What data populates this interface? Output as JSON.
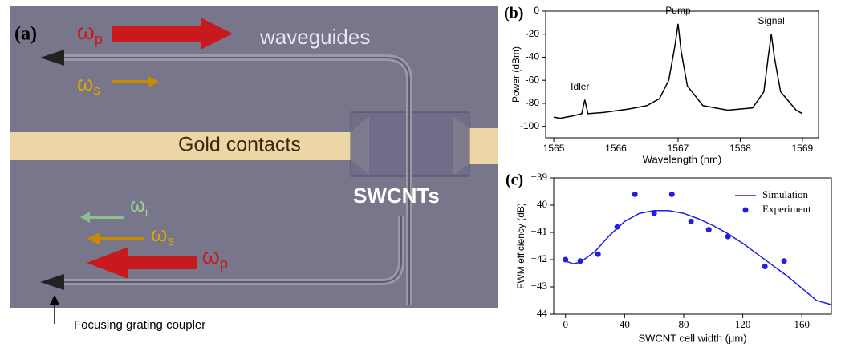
{
  "panel_a": {
    "label": "(a)",
    "waveguides": "waveguides",
    "gold": "Gold contacts",
    "swcnt": "SWCNTs",
    "caption": "Focusing grating coupler",
    "omegas": [
      {
        "symbol": "ω",
        "sub": "p"
      },
      {
        "symbol": "ω",
        "sub": "s"
      },
      {
        "symbol": "ω",
        "sub": "i"
      },
      {
        "symbol": "ω",
        "sub": "s"
      },
      {
        "symbol": "ω",
        "sub": "p"
      }
    ]
  },
  "chart_data": [
    {
      "type": "line",
      "label": "(b)",
      "x_label": "Wavelength (nm)",
      "y_label": "Power (dBm)",
      "xlim": [
        1564.87,
        1569.26
      ],
      "ylim": [
        -110,
        0
      ],
      "xticks": [
        1565,
        1566,
        1567,
        1568,
        1569
      ],
      "yticks": [
        -100,
        -80,
        -60,
        -40,
        -20,
        0
      ],
      "annotations": [
        "Idler",
        "Pump",
        "Signal"
      ],
      "series": [
        {
          "type": "line",
          "color": "#000000",
          "x": [
            1565,
            1565.1,
            1565.3,
            1565.45,
            1565.5,
            1565.55,
            1565.8,
            1566.2,
            1566.5,
            1566.7,
            1566.85,
            1566.95,
            1567,
            1567.05,
            1567.15,
            1567.4,
            1567.8,
            1568.2,
            1568.38,
            1568.45,
            1568.5,
            1568.55,
            1568.65,
            1568.9,
            1569
          ],
          "values": [
            -92,
            -93,
            -91,
            -89,
            -77,
            -89,
            -88,
            -85,
            -82,
            -76,
            -60,
            -30,
            -11,
            -35,
            -65,
            -82,
            -86,
            -84,
            -70,
            -40,
            -20,
            -40,
            -70,
            -86,
            -89
          ]
        }
      ]
    },
    {
      "type": "line",
      "label": "(c)",
      "x_label": "SWCNT cell width (μm)",
      "y_label": "FWM efficiency (dB)",
      "xlim": [
        -8,
        180
      ],
      "ylim": [
        -44,
        -39
      ],
      "xticks": [
        0,
        40,
        80,
        120,
        160
      ],
      "yticks": [
        {
          "value": -44,
          "label": "−44"
        },
        {
          "value": -43,
          "label": "−43"
        },
        {
          "value": -42,
          "label": "−42"
        },
        {
          "value": -41,
          "label": "−41"
        },
        {
          "value": -40,
          "label": "−40"
        },
        {
          "value": -39,
          "label": "−39"
        }
      ],
      "legend": "upper right",
      "series": [
        {
          "name": "Simulation",
          "type": "line",
          "color": "#1f1fe0",
          "x": [
            0,
            5,
            10,
            20,
            30,
            40,
            50,
            60,
            70,
            80,
            90,
            100,
            110,
            120,
            130,
            140,
            150,
            160,
            170,
            180
          ],
          "values": [
            -42.05,
            -42.15,
            -42.1,
            -41.7,
            -41.1,
            -40.6,
            -40.3,
            -40.2,
            -40.2,
            -40.3,
            -40.5,
            -40.75,
            -41.05,
            -41.4,
            -41.8,
            -42.2,
            -42.6,
            -43.05,
            -43.5,
            -43.65
          ]
        },
        {
          "name": "Experiment",
          "type": "scatter",
          "color": "#1f1fe0",
          "x": [
            0,
            10,
            22,
            35,
            47,
            60,
            72,
            85,
            97,
            110,
            135,
            148
          ],
          "values": [
            -42,
            -42.05,
            -41.8,
            -40.8,
            -39.6,
            -40.3,
            -39.6,
            -40.6,
            -40.9,
            -41.15,
            -42.25,
            -42.05
          ]
        }
      ]
    }
  ]
}
